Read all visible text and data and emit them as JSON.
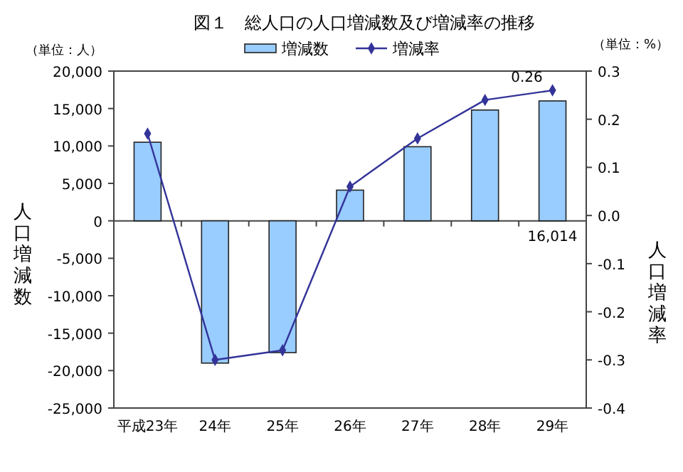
{
  "chart_data": {
    "type": "bar",
    "title": "図１　総人口の人口増減数及び増減率の推移",
    "ylabel": "人口増減数",
    "y2label": "人口増減率",
    "annotations": [
      "（単位：人）",
      "（単位：%）"
    ],
    "categories": [
      "平成23年",
      "24年",
      "25年",
      "26年",
      "27年",
      "28年",
      "29年"
    ],
    "series": [
      {
        "name": "増減数",
        "color": "#99ccff",
        "values": [
          10500,
          -19000,
          -17600,
          4100,
          9900,
          14800,
          16014
        ],
        "value_labels": [
          null,
          null,
          null,
          null,
          null,
          null,
          "16,014"
        ]
      },
      {
        "name": "増減率",
        "type": "line",
        "axis": "y2",
        "color": "#333399",
        "marker": "diamond",
        "values": [
          0.17,
          -0.3,
          -0.28,
          0.06,
          0.16,
          0.24,
          0.26
        ],
        "value_labels": [
          null,
          null,
          null,
          null,
          null,
          null,
          "0.26"
        ]
      }
    ],
    "ylim": [
      -25000,
      20000
    ],
    "yticks": [
      {
        "value": -25000,
        "label": "-25,000"
      },
      {
        "value": -20000,
        "label": "-20,000"
      },
      {
        "value": -15000,
        "label": "-15,000"
      },
      {
        "value": -10000,
        "label": "-10,000"
      },
      {
        "value": -5000,
        "label": "-5,000"
      },
      0,
      {
        "value": 5000,
        "label": "5,000"
      },
      {
        "value": 10000,
        "label": "10,000"
      },
      {
        "value": 15000,
        "label": "15,000"
      },
      {
        "value": 20000,
        "label": "20,000"
      }
    ],
    "y2lim": [
      -0.4,
      0.3
    ],
    "y2ticks": [
      -0.4,
      -0.3,
      -0.2,
      -0.1,
      {
        "value": 0,
        "label": "0.0"
      },
      0.1,
      0.2,
      0.3
    ],
    "legend": "top"
  }
}
